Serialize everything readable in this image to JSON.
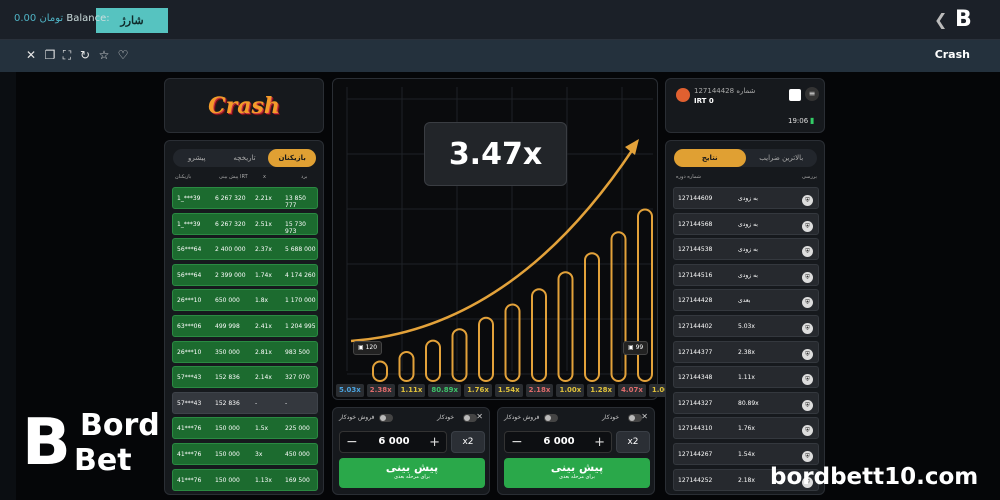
{
  "header": {
    "charge_label": "شارژ",
    "balance_label": "Balance:",
    "balance_value": "0.00",
    "currency": "تومان",
    "brand_glyph": "B",
    "back_glyph": "❮"
  },
  "toolbar": {
    "title": "Crash"
  },
  "game_logo": "Crash",
  "players": {
    "tabs": [
      "پیشرو",
      "تاریخچه",
      "بازیکنان"
    ],
    "columns": [
      "برد",
      "x",
      "پیش بینی IRT",
      "بازیکنان"
    ],
    "rows": [
      {
        "win": "13 850 777",
        "x": "2.21x",
        "bet": "6 267 320",
        "player": "1_***39",
        "status": "win"
      },
      {
        "win": "15 730 973",
        "x": "2.51x",
        "bet": "6 267 320",
        "player": "1_***39",
        "status": "win"
      },
      {
        "win": "5 688 000",
        "x": "2.37x",
        "bet": "2 400 000",
        "player": "56***64",
        "status": "win"
      },
      {
        "win": "4 174 260",
        "x": "1.74x",
        "bet": "2 399 000",
        "player": "56***64",
        "status": "win"
      },
      {
        "win": "1 170 000",
        "x": "1.8x",
        "bet": "650 000",
        "player": "26***10",
        "status": "win"
      },
      {
        "win": "1 204 995",
        "x": "2.41x",
        "bet": "499 998",
        "player": "63***06",
        "status": "win"
      },
      {
        "win": "983 500",
        "x": "2.81x",
        "bet": "350 000",
        "player": "26***10",
        "status": "win"
      },
      {
        "win": "327 070",
        "x": "2.14x",
        "bet": "152 836",
        "player": "57***43",
        "status": "win"
      },
      {
        "win": "-",
        "x": "-",
        "bet": "152 836",
        "player": "57***43",
        "status": "pending"
      },
      {
        "win": "225 000",
        "x": "1.5x",
        "bet": "150 000",
        "player": "41***76",
        "status": "win"
      },
      {
        "win": "450 000",
        "x": "3x",
        "bet": "150 000",
        "player": "41***76",
        "status": "win"
      },
      {
        "win": "169 500",
        "x": "1.13x",
        "bet": "150 000",
        "player": "41***76",
        "status": "win"
      }
    ]
  },
  "game": {
    "multiplier": "3.47x",
    "bets_left": "120",
    "bets_right": "99",
    "bar_heights": [
      0.05,
      0.1,
      0.16,
      0.22,
      0.28,
      0.35,
      0.43,
      0.52,
      0.62,
      0.73,
      0.85,
      1.0
    ],
    "history": [
      {
        "v": "5.03x",
        "c": "#4aa3df"
      },
      {
        "v": "2.38x",
        "c": "#e06b6b"
      },
      {
        "v": "1.11x",
        "c": "#e0c23a"
      },
      {
        "v": "80.89x",
        "c": "#3cc46a"
      },
      {
        "v": "1.76x",
        "c": "#e0c23a"
      },
      {
        "v": "1.54x",
        "c": "#e0c23a"
      },
      {
        "v": "2.18x",
        "c": "#e06b6b"
      },
      {
        "v": "1.00x",
        "c": "#e0c23a"
      },
      {
        "v": "1.28x",
        "c": "#e0c23a"
      },
      {
        "v": "4.07x",
        "c": "#e06b6b"
      },
      {
        "v": "1.00x",
        "c": "#e0c23a"
      }
    ]
  },
  "bets": [
    {
      "auto_sell": "فروش خودکار",
      "auto": "خودکار",
      "amount": "6 000",
      "x2": "x2",
      "predict": "پیش بینی",
      "predict_sub": "برای مرحله بعدی"
    },
    {
      "auto_sell": "فروش خودکار",
      "auto": "خودکار",
      "amount": "6 000",
      "x2": "x2",
      "predict": "پیش بینی",
      "predict_sub": "برای مرحله بعدی"
    }
  ],
  "user": {
    "id_label": "شماره",
    "id": "127144428",
    "currency": "IRT",
    "balance": "0",
    "time": "19:06"
  },
  "rounds": {
    "tabs": [
      "بالاترین ضرایب",
      "نتایج"
    ],
    "columns": [
      "شماره دوره",
      "بررسی"
    ],
    "rows": [
      {
        "id": "127144609",
        "result": "به زودی"
      },
      {
        "id": "127144568",
        "result": "به زودی"
      },
      {
        "id": "127144538",
        "result": "به زودی"
      },
      {
        "id": "127144516",
        "result": "به زودی"
      },
      {
        "id": "127144428",
        "result": "بعدی"
      },
      {
        "id": "127144402",
        "result": "5.03x"
      },
      {
        "id": "127144377",
        "result": "2.38x"
      },
      {
        "id": "127144348",
        "result": "1.11x"
      },
      {
        "id": "127144327",
        "result": "80.89x"
      },
      {
        "id": "127144310",
        "result": "1.76x"
      },
      {
        "id": "127144267",
        "result": "1.54x"
      },
      {
        "id": "127144252",
        "result": "2.18x"
      }
    ]
  },
  "watermark": {
    "b": "B",
    "w1": "Bord",
    "w2": "Bet",
    "site": "bordbett10.com"
  }
}
